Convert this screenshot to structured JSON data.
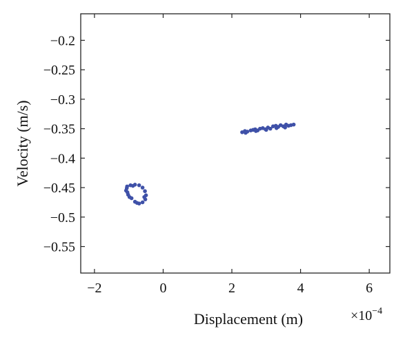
{
  "chart_data": {
    "type": "scatter",
    "xlabel": "Displacement (m)",
    "ylabel": "Velocity (m/s)",
    "x_scale_label": "×10",
    "x_scale_exponent": "−4",
    "xlim": [
      -2.4,
      6.6
    ],
    "ylim": [
      -0.595,
      -0.155
    ],
    "x_ticks": [
      -2,
      0,
      2,
      4,
      6
    ],
    "x_tick_labels": [
      "−2",
      "0",
      "2",
      "4",
      "6"
    ],
    "y_ticks": [
      -0.2,
      -0.25,
      -0.3,
      -0.35,
      -0.4,
      -0.45,
      -0.5,
      -0.55
    ],
    "y_tick_labels": [
      "−0.2",
      "−0.25",
      "−0.3",
      "−0.35",
      "−0.4",
      "−0.45",
      "−0.5",
      "−0.55"
    ],
    "grid": false,
    "marker_color": "#3f51a8",
    "series": [
      {
        "points": [
          [
            -1.05,
            -0.448
          ],
          [
            -0.95,
            -0.446
          ],
          [
            -0.82,
            -0.445
          ],
          [
            -0.7,
            -0.446
          ],
          [
            -0.6,
            -0.45
          ],
          [
            -0.53,
            -0.456
          ],
          [
            -0.5,
            -0.463
          ],
          [
            -0.52,
            -0.47
          ],
          [
            -0.6,
            -0.475
          ],
          [
            -0.7,
            -0.477
          ],
          [
            -0.82,
            -0.474
          ],
          [
            -0.92,
            -0.468
          ],
          [
            -1.02,
            -0.462
          ],
          [
            -1.08,
            -0.455
          ],
          [
            -1.06,
            -0.451
          ],
          [
            -0.88,
            -0.447
          ],
          [
            -0.76,
            -0.476
          ],
          [
            -0.98,
            -0.466
          ],
          [
            -0.55,
            -0.466
          ],
          [
            -1.04,
            -0.458
          ]
        ]
      },
      {
        "points": [
          [
            2.3,
            -0.356
          ],
          [
            2.38,
            -0.354
          ],
          [
            2.45,
            -0.355
          ],
          [
            2.55,
            -0.353
          ],
          [
            2.62,
            -0.352
          ],
          [
            2.68,
            -0.351
          ],
          [
            2.75,
            -0.353
          ],
          [
            2.82,
            -0.35
          ],
          [
            2.9,
            -0.349
          ],
          [
            2.98,
            -0.351
          ],
          [
            3.05,
            -0.348
          ],
          [
            3.12,
            -0.35
          ],
          [
            3.2,
            -0.346
          ],
          [
            3.28,
            -0.345
          ],
          [
            3.35,
            -0.347
          ],
          [
            3.42,
            -0.344
          ],
          [
            3.5,
            -0.346
          ],
          [
            3.58,
            -0.343
          ],
          [
            3.65,
            -0.345
          ],
          [
            3.72,
            -0.344
          ],
          [
            3.8,
            -0.343
          ],
          [
            2.4,
            -0.357
          ],
          [
            2.7,
            -0.354
          ],
          [
            3.0,
            -0.352
          ],
          [
            3.3,
            -0.349
          ],
          [
            3.55,
            -0.348
          ]
        ]
      }
    ]
  }
}
